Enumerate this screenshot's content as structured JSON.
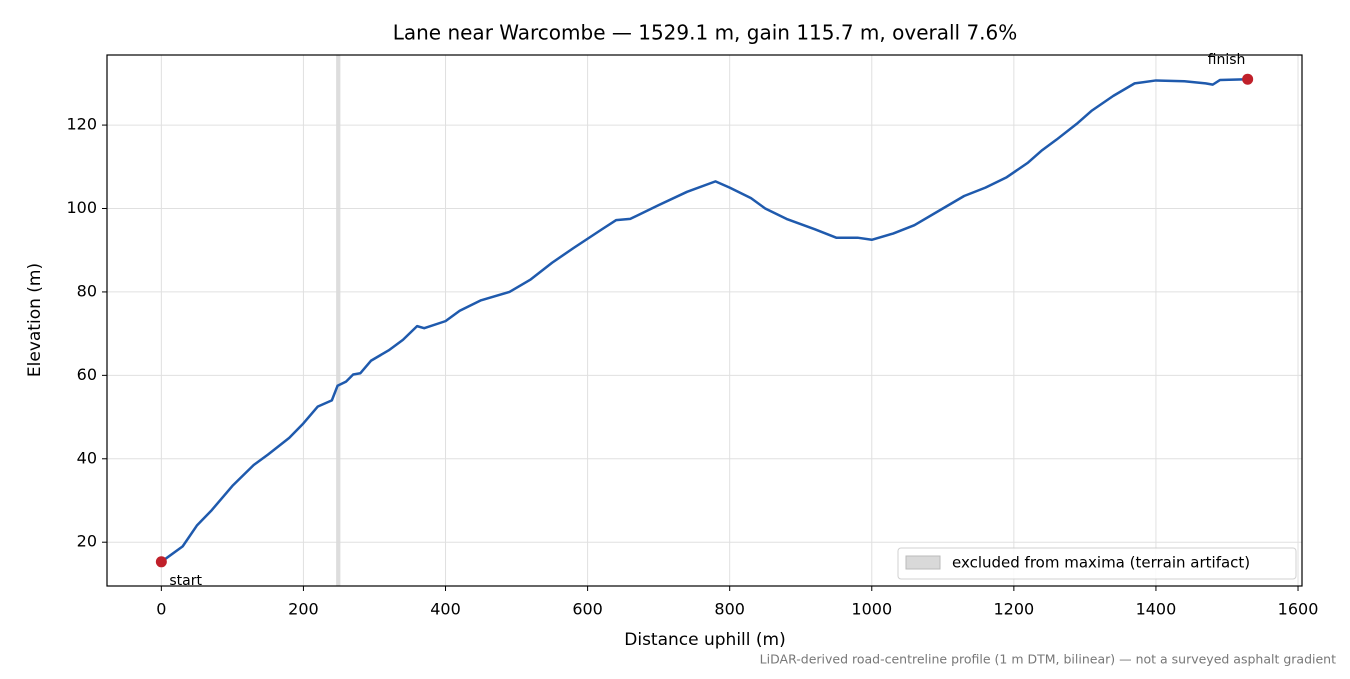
{
  "chart_data": {
    "type": "line",
    "title": "Lane near Warcombe — 1529.1 m, gain 115.7 m, overall 7.6%",
    "x_label": "Distance uphill (m)",
    "y_label": "Elevation (m)",
    "footnote": "LiDAR-derived road-centreline profile (1 m DTM, bilinear) — not a surveyed asphalt gradient",
    "x": [
      0,
      30,
      50,
      70,
      100,
      130,
      150,
      180,
      200,
      220,
      240,
      248,
      260,
      270,
      280,
      295,
      320,
      340,
      360,
      370,
      400,
      420,
      450,
      490,
      520,
      550,
      580,
      620,
      640,
      660,
      700,
      740,
      780,
      800,
      830,
      850,
      880,
      920,
      950,
      980,
      1000,
      1030,
      1060,
      1100,
      1130,
      1160,
      1190,
      1220,
      1240,
      1260,
      1290,
      1310,
      1340,
      1370,
      1400,
      1440,
      1470,
      1480,
      1490,
      1529.1
    ],
    "series": [
      {
        "name": "elevation",
        "color": "#1f5aad",
        "values": [
          15.3,
          19,
          24,
          27.5,
          33.5,
          38.5,
          41,
          45,
          48.5,
          52.5,
          54,
          57.5,
          58.5,
          60.2,
          60.5,
          63.5,
          66,
          68.5,
          71.8,
          71.3,
          73,
          75.5,
          78,
          80,
          83,
          87,
          90.5,
          95,
          97.2,
          97.5,
          100.8,
          104,
          106.5,
          105,
          102.5,
          100,
          97.5,
          95,
          93,
          93,
          92.5,
          94,
          96,
          100,
          103,
          105,
          107.5,
          111,
          114,
          116.5,
          120.5,
          123.5,
          127,
          130,
          130.7,
          130.5,
          130,
          129.7,
          130.8,
          131
        ]
      }
    ],
    "markers": {
      "x": [
        0,
        1529.1
      ],
      "values": [
        15.3,
        131
      ],
      "labels": [
        "start",
        "finish"
      ],
      "color": "#c0202a"
    },
    "excluded_span": {
      "name": "excluded from maxima (terrain artifact)",
      "x": [
        246,
        252
      ],
      "color": "#d9d9d9"
    },
    "xlim": [
      -76.5,
      1605.6
    ],
    "ylim": [
      9.5,
      136.8
    ],
    "xticks": [
      0,
      200,
      400,
      600,
      800,
      1000,
      1200,
      1400,
      1600
    ],
    "yticks": [
      20,
      40,
      60,
      80,
      100,
      120
    ],
    "grid": true,
    "legend": "lower right"
  }
}
